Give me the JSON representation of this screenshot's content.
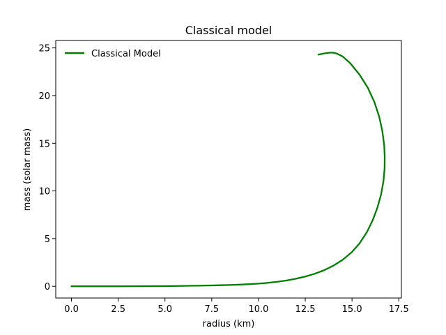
{
  "chart_data": {
    "type": "line",
    "title": "Classical model",
    "xlabel": "radius (km)",
    "ylabel": "mass (solar mass)",
    "xlim": [
      -0.84,
      17.64
    ],
    "ylim": [
      -1.23,
      25.78
    ],
    "xticks": [
      0.0,
      2.5,
      5.0,
      7.5,
      10.0,
      12.5,
      15.0,
      17.5
    ],
    "xtick_labels": [
      "0.0",
      "2.5",
      "5.0",
      "7.5",
      "10.0",
      "12.5",
      "15.0",
      "17.5"
    ],
    "yticks": [
      0,
      5,
      10,
      15,
      20,
      25
    ],
    "ytick_labels": [
      "0",
      "5",
      "10",
      "15",
      "20",
      "25"
    ],
    "grid": false,
    "legend_position": "upper left",
    "series": [
      {
        "name": "Classical Model",
        "color": "#008000",
        "x": [
          0.0,
          2.5,
          5.0,
          6.0,
          7.0,
          8.0,
          8.7,
          9.5,
          10.0,
          10.5,
          11.0,
          11.5,
          12.0,
          12.5,
          13.0,
          13.5,
          14.0,
          14.5,
          15.0,
          15.4,
          15.8,
          16.1,
          16.35,
          16.55,
          16.68,
          16.74,
          16.75,
          16.72,
          16.62,
          16.45,
          16.2,
          15.85,
          15.4,
          14.9,
          14.5,
          14.2,
          14.0,
          13.8,
          13.6,
          13.4,
          13.2
        ],
        "y": [
          0.0,
          0.0,
          0.02,
          0.04,
          0.07,
          0.11,
          0.15,
          0.22,
          0.28,
          0.36,
          0.47,
          0.61,
          0.79,
          1.02,
          1.31,
          1.68,
          2.16,
          2.78,
          3.6,
          4.5,
          5.7,
          6.9,
          8.2,
          9.6,
          11.0,
          12.3,
          13.5,
          14.8,
          16.3,
          17.8,
          19.3,
          20.8,
          22.2,
          23.4,
          24.1,
          24.4,
          24.5,
          24.5,
          24.45,
          24.38,
          24.3
        ]
      }
    ]
  }
}
